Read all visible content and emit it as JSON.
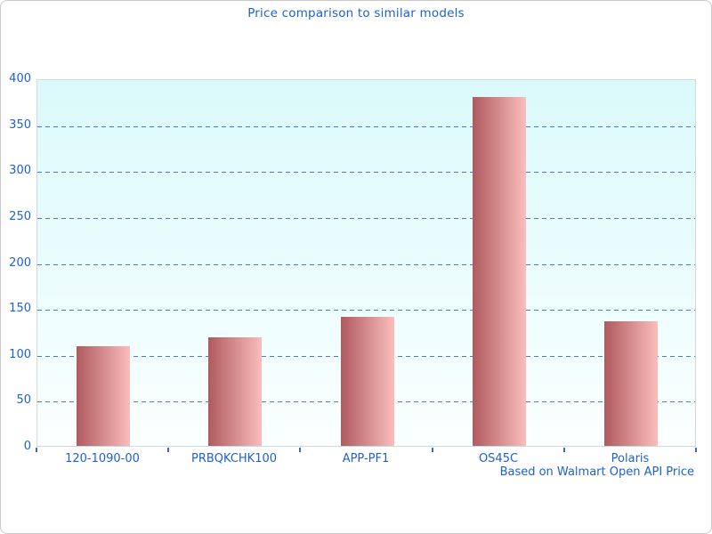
{
  "chart_data": {
    "type": "bar",
    "title": "Price comparison to similar models",
    "categories": [
      "120-1090-00",
      "PRBQKCHK100",
      "APP-PF1",
      "OS45C",
      "Polaris"
    ],
    "values": [
      108,
      118,
      140,
      380,
      136
    ],
    "xlabel": "",
    "ylabel": "",
    "ylim": [
      0,
      400
    ],
    "ytick_interval": 50,
    "yticks": [
      0,
      50,
      100,
      150,
      200,
      250,
      300,
      350,
      400
    ],
    "grid": "horizontal-dashed",
    "legend": "none",
    "footnote": "Based on Walmart Open API Price",
    "colors": {
      "title_text": "#1d60d1",
      "axis_label_text": "#2060cc",
      "gridline": "#3a68c8",
      "bar_gradient_left": "#af5a5e",
      "bar_gradient_right": "#fbbdbc",
      "plot_background_top": "#dbfafb",
      "plot_background_bottom": "#fbffff",
      "plot_border": "#cfd9d9",
      "frame_border": "#c9c9c9",
      "tick": "#3a68c8"
    }
  }
}
